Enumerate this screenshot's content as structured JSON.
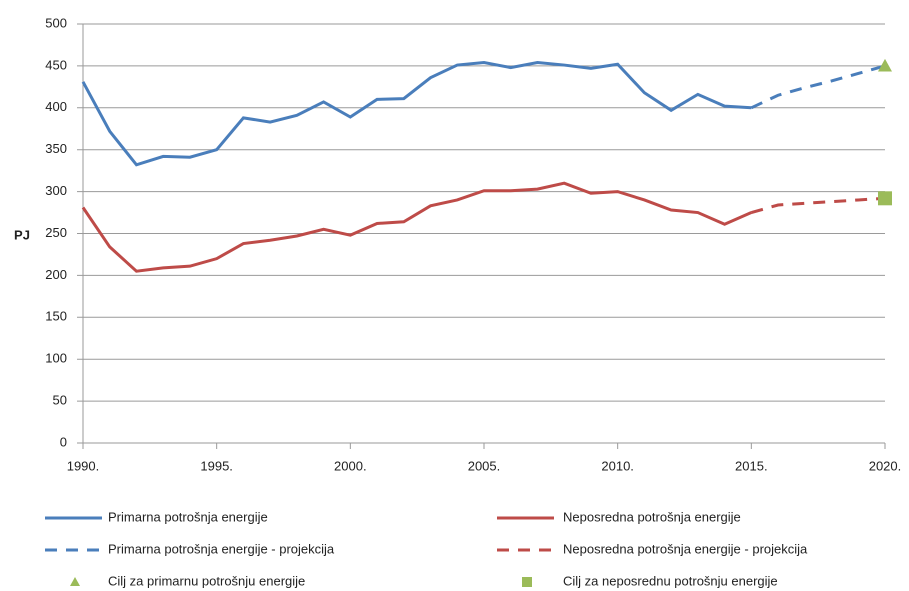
{
  "chart_data": {
    "type": "line",
    "y_label": "PJ",
    "xlim": [
      1990,
      2020
    ],
    "ylim": [
      0,
      500
    ],
    "xticks": [
      {
        "value": 1990,
        "label": "1990."
      },
      {
        "value": 1995,
        "label": "1995."
      },
      {
        "value": 2000,
        "label": "2000."
      },
      {
        "value": 2005,
        "label": "2005."
      },
      {
        "value": 2010,
        "label": "2010."
      },
      {
        "value": 2015,
        "label": "2015."
      },
      {
        "value": 2020,
        "label": "2020."
      }
    ],
    "yticks": [
      0,
      50,
      100,
      150,
      200,
      250,
      300,
      350,
      400,
      450,
      500
    ],
    "grid": true,
    "series": [
      {
        "name": "Primarna potrošnja energije",
        "color": "#4a7ebb",
        "style": "solid",
        "x": [
          1990,
          1991,
          1992,
          1993,
          1994,
          1995,
          1996,
          1997,
          1998,
          1999,
          2000,
          2001,
          2002,
          2003,
          2004,
          2005,
          2006,
          2007,
          2008,
          2009,
          2010,
          2011,
          2012,
          2013,
          2014,
          2015
        ],
        "values": [
          431,
          372,
          332,
          342,
          341,
          350,
          388,
          383,
          391,
          407,
          389,
          410,
          411,
          436,
          451,
          454,
          448,
          454,
          451,
          447,
          452,
          418,
          397,
          416,
          402,
          400
        ]
      },
      {
        "name": "Neposredna potrošnja energije",
        "color": "#be4b48",
        "style": "solid",
        "x": [
          1990,
          1991,
          1992,
          1993,
          1994,
          1995,
          1996,
          1997,
          1998,
          1999,
          2000,
          2001,
          2002,
          2003,
          2004,
          2005,
          2006,
          2007,
          2008,
          2009,
          2010,
          2011,
          2012,
          2013,
          2014,
          2015
        ],
        "values": [
          281,
          234,
          205,
          209,
          211,
          220,
          238,
          242,
          247,
          255,
          248,
          262,
          264,
          283,
          290,
          301,
          301,
          303,
          310,
          298,
          300,
          290,
          278,
          275,
          261,
          275
        ]
      },
      {
        "name": "Primarna potrošnja energije - projekcija",
        "color": "#4a7ebb",
        "style": "dashed",
        "x": [
          2015,
          2016,
          2017,
          2018,
          2019,
          2020
        ],
        "values": [
          400,
          415,
          424,
          432,
          441,
          450
        ]
      },
      {
        "name": "Neposredna potrošnja energije - projekcija",
        "color": "#be4b48",
        "style": "dashed",
        "x": [
          2015,
          2016,
          2017,
          2018,
          2019,
          2020
        ],
        "values": [
          275,
          284,
          286,
          288,
          290,
          292
        ]
      },
      {
        "name": "Cilj za primarnu potrošnju energije",
        "color": "#9bbb59",
        "style": "marker",
        "marker": "triangle",
        "x": [
          2020
        ],
        "values": [
          450
        ]
      },
      {
        "name": "Cilj za neposrednu potrošnju energije",
        "color": "#9bbb59",
        "style": "marker",
        "marker": "square",
        "x": [
          2020
        ],
        "values": [
          292
        ]
      }
    ]
  }
}
